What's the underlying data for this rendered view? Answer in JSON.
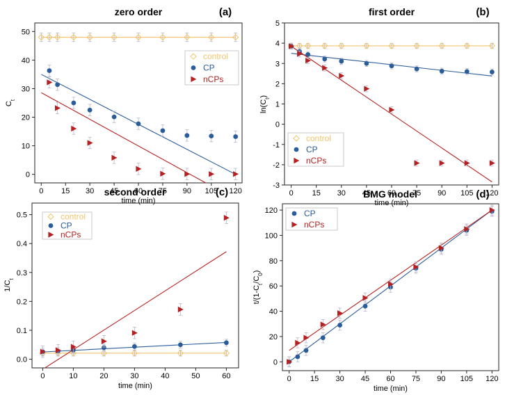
{
  "figure": {
    "colors": {
      "control": "#f2c46b",
      "cp": "#2a5c9a",
      "ncps": "#b52020",
      "error": "#b6b6cc"
    },
    "panels": [
      {
        "id": "a",
        "label": "(a)",
        "title": "zero order",
        "xlabel": "time (min)",
        "ylabel": "C",
        "ylabel_sub": "t",
        "xlim": [
          -4,
          124
        ],
        "ylim": [
          -3,
          53
        ],
        "xticks": [
          0,
          15,
          30,
          45,
          60,
          75,
          90,
          105,
          120
        ],
        "yticks": [
          0,
          10,
          20,
          30,
          40,
          50
        ],
        "legend": {
          "corner": "top-right",
          "entries": [
            {
              "series": "control",
              "label": "control"
            },
            {
              "series": "cp",
              "label": "CP"
            },
            {
              "series": "ncps",
              "label": "nCPs"
            }
          ]
        },
        "series": [
          {
            "key": "control",
            "marker": "diamond",
            "err": 1.5,
            "x": [
              0,
              5,
              10,
              20,
              30,
              45,
              60,
              75,
              90,
              105,
              120
            ],
            "y": [
              48,
              48,
              48,
              48,
              48,
              48,
              48,
              48,
              48,
              48,
              48
            ],
            "fit": [
              [
                0,
                48
              ],
              [
                120,
                48
              ]
            ]
          },
          {
            "key": "cp",
            "marker": "circle",
            "err": 2,
            "x": [
              5,
              10,
              20,
              30,
              45,
              60,
              75,
              90,
              105,
              120
            ],
            "y": [
              36.3,
              31.4,
              25,
              22.5,
              20.1,
              17.7,
              15.3,
              13.6,
              13.4,
              13.2
            ],
            "fit": [
              [
                0,
                35
              ],
              [
                120,
                0
              ]
            ]
          },
          {
            "key": "ncps",
            "marker": "triangle",
            "err": 2,
            "x": [
              5,
              10,
              20,
              30,
              45,
              60,
              75,
              90,
              105,
              120
            ],
            "y": [
              32.2,
              23.2,
              16,
              11,
              5.8,
              1.9,
              0.2,
              0.1,
              0.1,
              0.1
            ],
            "fit": [
              [
                0,
                28.6
              ],
              [
                108,
                -5
              ]
            ]
          }
        ]
      },
      {
        "id": "b",
        "label": "(b)",
        "title": "first order",
        "xlabel": "time (min)",
        "ylabel": "ln(C",
        "ylabel_sub": "t",
        "ylabel_end": ")",
        "xlim": [
          -4,
          124
        ],
        "ylim": [
          -3,
          5
        ],
        "xticks": [
          0,
          15,
          30,
          45,
          60,
          75,
          90,
          105,
          120
        ],
        "yticks": [
          -3,
          -2,
          -1,
          0,
          1,
          2,
          3,
          4,
          5
        ],
        "legend": {
          "corner": "bottom-left",
          "entries": [
            {
              "series": "control",
              "label": "control"
            },
            {
              "series": "cp",
              "label": "CP"
            },
            {
              "series": "ncps",
              "label": "nCPs"
            }
          ]
        },
        "series": [
          {
            "key": "control",
            "marker": "diamond",
            "err": 0.12,
            "x": [
              0,
              5,
              10,
              20,
              30,
              45,
              60,
              75,
              90,
              105,
              120
            ],
            "y": [
              3.87,
              3.87,
              3.87,
              3.87,
              3.87,
              3.87,
              3.87,
              3.87,
              3.87,
              3.87,
              3.87
            ],
            "fit": [
              [
                0,
                3.87
              ],
              [
                120,
                3.87
              ]
            ]
          },
          {
            "key": "cp",
            "marker": "circle",
            "err": 0.15,
            "x": [
              0,
              5,
              10,
              20,
              30,
              45,
              60,
              75,
              90,
              105,
              120
            ],
            "y": [
              3.85,
              3.59,
              3.44,
              3.22,
              3.11,
              3.0,
              2.88,
              2.73,
              2.62,
              2.6,
              2.58
            ],
            "fit": [
              [
                0,
                3.5
              ],
              [
                120,
                2.38
              ]
            ]
          },
          {
            "key": "ncps",
            "marker": "triangle",
            "err": 0.15,
            "x": [
              0,
              5,
              10,
              20,
              30,
              45,
              60,
              75,
              90,
              105,
              120
            ],
            "y": [
              3.85,
              3.47,
              3.14,
              2.78,
              2.39,
              1.75,
              0.71,
              -1.92,
              -1.92,
              -1.92,
              -1.92
            ],
            "fit": [
              [
                0,
                3.85
              ],
              [
                120,
                -2.85
              ]
            ]
          }
        ]
      },
      {
        "id": "c",
        "label": "(c)",
        "title": "second order",
        "xlabel": "time (min)",
        "ylabel": "1/C",
        "ylabel_sub": "t",
        "xlim": [
          -3.5,
          64
        ],
        "ylim": [
          -0.03,
          0.54
        ],
        "xticks": [
          0,
          10,
          20,
          30,
          40,
          50,
          60
        ],
        "yticks": [
          0.0,
          0.1,
          0.2,
          0.3,
          0.4,
          0.5
        ],
        "ytick_decimals": 1,
        "legend": {
          "corner": "top-left",
          "entries": [
            {
              "series": "control",
              "label": "control"
            },
            {
              "series": "cp",
              "label": "CP"
            },
            {
              "series": "ncps",
              "label": "nCPs"
            }
          ]
        },
        "series": [
          {
            "key": "control",
            "marker": "diamond",
            "err": 0.01,
            "x": [
              0,
              5,
              10,
              20,
              30,
              45,
              60
            ],
            "y": [
              0.021,
              0.021,
              0.021,
              0.021,
              0.021,
              0.021,
              0.021
            ],
            "fit": [
              [
                0,
                0.021
              ],
              [
                60,
                0.021
              ]
            ]
          },
          {
            "key": "cp",
            "marker": "circle",
            "err": 0.012,
            "x": [
              0,
              5,
              10,
              20,
              30,
              45,
              60
            ],
            "y": [
              0.026,
              0.028,
              0.032,
              0.04,
              0.044,
              0.05,
              0.057
            ],
            "fit": [
              [
                0,
                0.025
              ],
              [
                60,
                0.058
              ]
            ]
          },
          {
            "key": "ncps",
            "marker": "triangle",
            "err": 0.02,
            "x": [
              0,
              5,
              10,
              20,
              30,
              45,
              60
            ],
            "y": [
              0.026,
              0.031,
              0.043,
              0.062,
              0.091,
              0.172,
              0.489
            ],
            "fit": [
              [
                0,
                -0.035
              ],
              [
                60,
                0.372
              ]
            ]
          }
        ]
      },
      {
        "id": "d",
        "label": "(d)",
        "title": "BMG model",
        "xlabel": "time (min)",
        "ylabel": "t/(1-C",
        "ylabel_sub": "t",
        "ylabel_mid": "/C",
        "ylabel_sub2": "0",
        "ylabel_end": ")",
        "xlim": [
          -4,
          124
        ],
        "ylim": [
          -7,
          125
        ],
        "xticks": [
          0,
          15,
          30,
          45,
          60,
          75,
          90,
          105,
          120
        ],
        "yticks": [
          0,
          20,
          40,
          60,
          80,
          100,
          120
        ],
        "legend": {
          "corner": "top-left",
          "entries": [
            {
              "series": "cp",
              "label": "CP"
            },
            {
              "series": "ncps",
              "label": "nCPs"
            }
          ]
        },
        "series": [
          {
            "key": "cp",
            "marker": "circle",
            "err": 4,
            "x": [
              0,
              5,
              10,
              20,
              30,
              45,
              60,
              75,
              90,
              105,
              120
            ],
            "y": [
              0,
              4,
              9,
              19,
              29,
              44,
              59,
              74,
              89,
              104,
              119
            ],
            "fit": [
              [
                0,
                0
              ],
              [
                120,
                120
              ]
            ]
          },
          {
            "key": "ncps",
            "marker": "triangle",
            "err": 4,
            "x": [
              0,
              5,
              10,
              20,
              30,
              45,
              60,
              75,
              90,
              105,
              120
            ],
            "y": [
              0,
              15,
              19,
              29.5,
              38.5,
              50.5,
              61.5,
              75,
              90,
              105,
              120
            ],
            "fit": [
              [
                0,
                9
              ],
              [
                120,
                120
              ]
            ]
          }
        ]
      }
    ]
  }
}
